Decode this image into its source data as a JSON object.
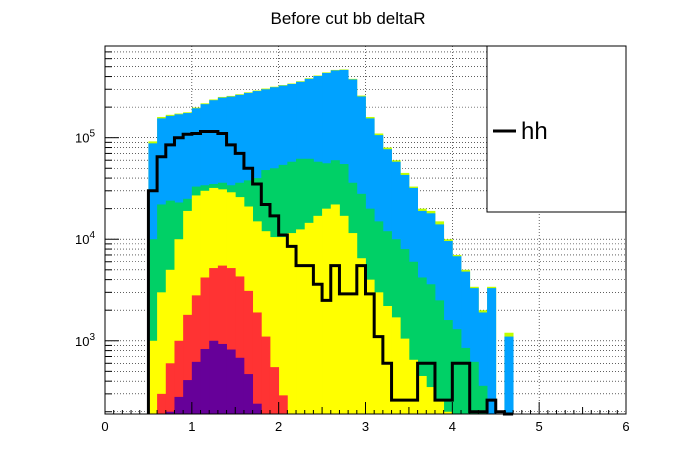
{
  "chart_data": {
    "type": "histogram-stacked",
    "title": "Before cut bb deltaR",
    "xlabel": "",
    "ylabel": "",
    "xlim": [
      0,
      6
    ],
    "ylim": [
      190,
      800000
    ],
    "log_y": true,
    "grid": true,
    "bin_width": 0.1,
    "bin_start": 0.5,
    "x_ticks": [
      "0",
      "1",
      "2",
      "3",
      "4",
      "5",
      "6"
    ],
    "y_ticks": [
      {
        "value": 1000,
        "base": "10",
        "exp": "3"
      },
      {
        "value": 10000,
        "base": "10",
        "exp": "4"
      },
      {
        "value": 100000,
        "base": "10",
        "exp": "5"
      }
    ],
    "legend": {
      "placement": "top-right",
      "entries": [
        {
          "label": "hh",
          "color": "#000000"
        }
      ]
    },
    "layers": [
      {
        "color": "#bfff00",
        "values": [
          92000,
          160000,
          168000,
          173000,
          178000,
          198000,
          218000,
          238000,
          252000,
          258000,
          268000,
          280000,
          292000,
          305000,
          318000,
          330000,
          342000,
          360000,
          385000,
          410000,
          440000,
          465000,
          470000,
          380000,
          260000,
          160000,
          110000,
          80000,
          60000,
          45000,
          33000,
          20000,
          19000,
          15000,
          10000,
          7000,
          5000,
          3400,
          2000,
          3400,
          0,
          1200
        ]
      },
      {
        "color": "#00a2ff",
        "values": [
          88000,
          155000,
          164000,
          170000,
          175000,
          195000,
          214000,
          234000,
          248000,
          254000,
          264000,
          276000,
          288000,
          300000,
          314000,
          326000,
          338000,
          355000,
          380000,
          405000,
          434000,
          460000,
          465000,
          375000,
          255000,
          155000,
          106000,
          77000,
          58000,
          43000,
          32000,
          19000,
          18000,
          14000,
          9600,
          6800,
          4800,
          3300,
          1900,
          3300,
          0,
          1100
        ]
      },
      {
        "color": "#00d066",
        "values": [
          10000,
          22000,
          24000,
          23000,
          25000,
          33000,
          34000,
          35000,
          36000,
          34000,
          36000,
          38000,
          40000,
          48000,
          50000,
          54000,
          58000,
          62000,
          62000,
          58000,
          56000,
          60000,
          55000,
          36000,
          28000,
          20000,
          15000,
          12000,
          10000,
          8000,
          6000,
          4200,
          3600,
          2500,
          1600,
          1300,
          850,
          620,
          360,
          0,
          0,
          0
        ]
      },
      {
        "color": "#ffff00",
        "values": [
          1000,
          3000,
          5000,
          10000,
          19000,
          27000,
          30000,
          32000,
          31000,
          29000,
          26000,
          21000,
          15000,
          12000,
          10500,
          10500,
          11500,
          12500,
          14500,
          17000,
          20000,
          22000,
          17000,
          11500,
          6500,
          4000,
          3000,
          2200,
          1700,
          1050,
          650,
          450,
          350,
          260,
          200,
          0,
          0,
          0,
          0,
          0,
          0,
          0
        ]
      },
      {
        "color": "#ff3333",
        "values": [
          0,
          300,
          600,
          1000,
          1800,
          2800,
          4200,
          5200,
          5500,
          5200,
          4300,
          3100,
          1900,
          1100,
          550,
          290,
          0,
          0,
          0,
          0,
          0,
          0,
          0,
          0,
          0,
          0,
          0,
          0,
          0,
          0,
          0,
          0,
          0,
          0,
          0,
          0,
          0,
          0,
          0,
          0,
          0,
          0
        ]
      },
      {
        "color": "#660099",
        "values": [
          0,
          0,
          200,
          280,
          410,
          620,
          830,
          1000,
          930,
          820,
          680,
          470,
          240,
          0,
          0,
          0,
          0,
          0,
          0,
          0,
          0,
          0,
          0,
          0,
          0,
          0,
          0,
          0,
          0,
          0,
          0,
          0,
          0,
          0,
          0,
          0,
          0,
          0,
          0,
          0,
          0,
          0
        ]
      }
    ],
    "series": [
      {
        "name": "hh",
        "color": "#000000",
        "style": "step",
        "values": [
          30000,
          65000,
          85000,
          100000,
          108000,
          110000,
          115000,
          115000,
          110000,
          85000,
          70000,
          50000,
          35000,
          22000,
          17000,
          11000,
          8500,
          5500,
          5500,
          3600,
          2500,
          5500,
          2900,
          2900,
          5500,
          2900,
          1100,
          600,
          260,
          260,
          260,
          600,
          600,
          260,
          260,
          600,
          600,
          200,
          200,
          260,
          200,
          190
        ]
      }
    ]
  }
}
